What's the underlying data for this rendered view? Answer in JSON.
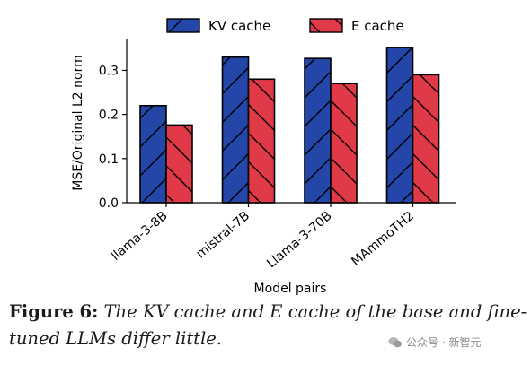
{
  "chart_data": {
    "type": "bar",
    "categories": [
      "llama-3-8B",
      "mistral-7B",
      "Llama-3-70B",
      "MAmmoTH2"
    ],
    "series": [
      {
        "name": "KV cache",
        "values": [
          0.22,
          0.33,
          0.327,
          0.352
        ],
        "color": "#2346a8",
        "hatch": "diagonal-up"
      },
      {
        "name": "E cache",
        "values": [
          0.176,
          0.28,
          0.27,
          0.29
        ],
        "color": "#e03a48",
        "hatch": "diagonal-down"
      }
    ],
    "xlabel": "Model pairs",
    "ylabel": "MSE/Original L2 norm",
    "ylim": [
      0,
      0.37
    ],
    "yticks": [
      0.0,
      0.1,
      0.2,
      0.3
    ],
    "ytick_labels": [
      "0.0",
      "0.1",
      "0.2",
      "0.3"
    ],
    "legend_position": "top-center",
    "grid": false
  },
  "caption": {
    "label": "Figure 6:",
    "text": "The KV cache and E cache of the base and fine-tuned LLMs differ little."
  },
  "watermark": {
    "text": "公众号 · 新智元"
  }
}
